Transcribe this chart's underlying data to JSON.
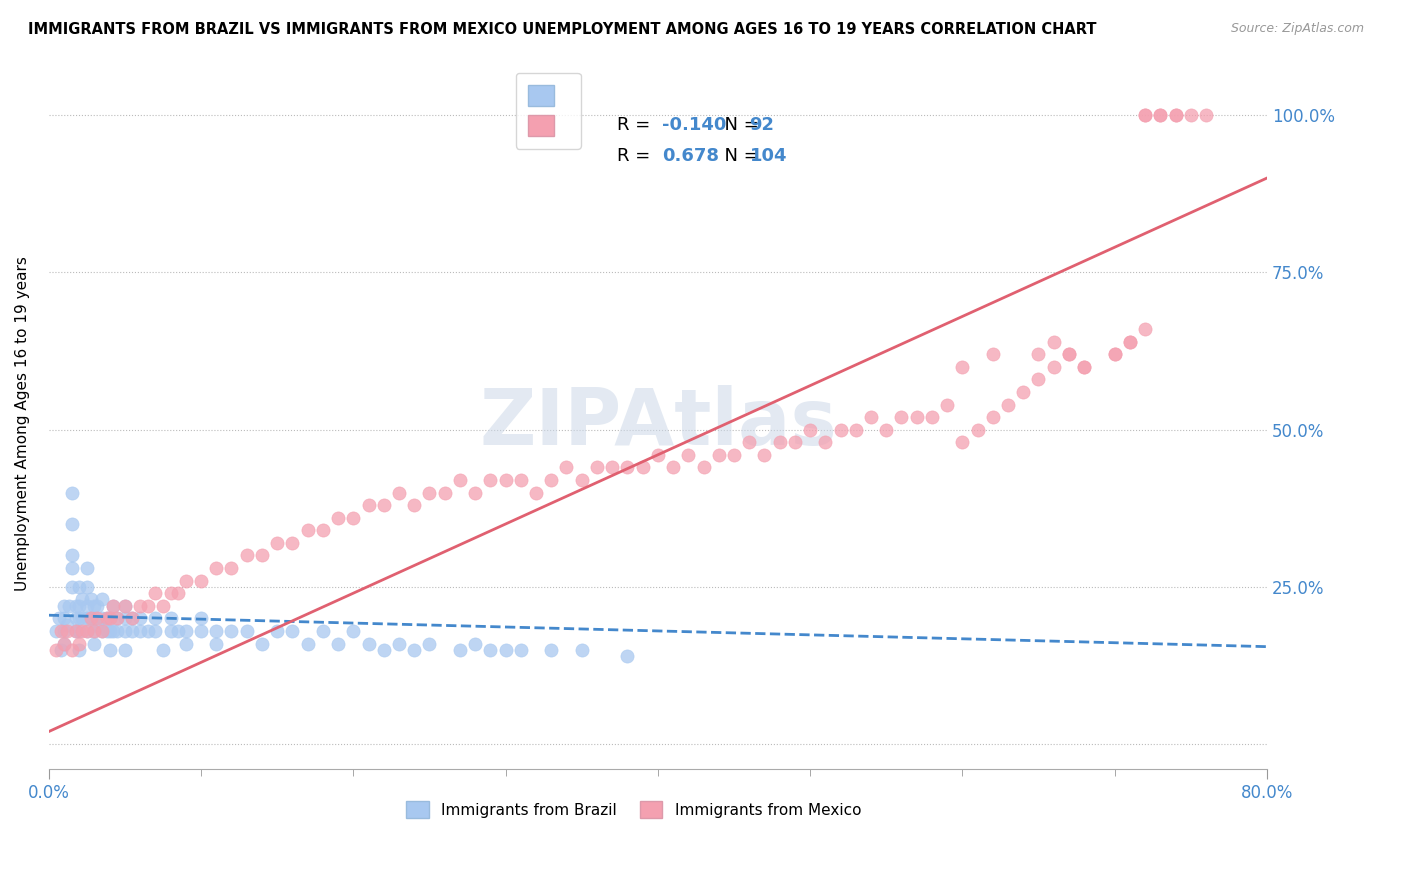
{
  "title": "IMMIGRANTS FROM BRAZIL VS IMMIGRANTS FROM MEXICO UNEMPLOYMENT AMONG AGES 16 TO 19 YEARS CORRELATION CHART",
  "source": "Source: ZipAtlas.com",
  "ylabel": "Unemployment Among Ages 16 to 19 years",
  "watermark": "ZIPAtlas",
  "xmin": 0.0,
  "xmax": 0.8,
  "ymin": -0.04,
  "ymax": 1.06,
  "brazil_R": -0.14,
  "brazil_N": 92,
  "mexico_R": 0.678,
  "mexico_N": 104,
  "brazil_color": "#a8c8f0",
  "mexico_color": "#f4a0b0",
  "brazil_line_color": "#4488cc",
  "mexico_line_color": "#e06070",
  "legend_brazil_label": "Immigrants from Brazil",
  "legend_mexico_label": "Immigrants from Mexico",
  "brazil_trend_x0": 0.0,
  "brazil_trend_y0": 0.205,
  "brazil_trend_x1": 0.8,
  "brazil_trend_y1": 0.155,
  "mexico_trend_x0": 0.0,
  "mexico_trend_y0": 0.02,
  "mexico_trend_x1": 0.8,
  "mexico_trend_y1": 0.9,
  "brazil_scatter_x": [
    0.005,
    0.007,
    0.008,
    0.01,
    0.01,
    0.01,
    0.01,
    0.012,
    0.013,
    0.015,
    0.015,
    0.015,
    0.015,
    0.015,
    0.018,
    0.018,
    0.018,
    0.02,
    0.02,
    0.02,
    0.02,
    0.02,
    0.022,
    0.022,
    0.025,
    0.025,
    0.025,
    0.025,
    0.025,
    0.028,
    0.028,
    0.03,
    0.03,
    0.03,
    0.03,
    0.032,
    0.032,
    0.035,
    0.035,
    0.035,
    0.038,
    0.038,
    0.04,
    0.04,
    0.04,
    0.042,
    0.042,
    0.045,
    0.045,
    0.05,
    0.05,
    0.05,
    0.05,
    0.055,
    0.055,
    0.06,
    0.06,
    0.065,
    0.07,
    0.07,
    0.075,
    0.08,
    0.08,
    0.085,
    0.09,
    0.09,
    0.1,
    0.1,
    0.11,
    0.11,
    0.12,
    0.13,
    0.14,
    0.15,
    0.16,
    0.17,
    0.18,
    0.19,
    0.2,
    0.21,
    0.22,
    0.23,
    0.24,
    0.25,
    0.27,
    0.28,
    0.29,
    0.3,
    0.31,
    0.33,
    0.35,
    0.38
  ],
  "brazil_scatter_y": [
    0.18,
    0.2,
    0.15,
    0.2,
    0.18,
    0.22,
    0.16,
    0.19,
    0.22,
    0.25,
    0.28,
    0.3,
    0.35,
    0.4,
    0.2,
    0.22,
    0.18,
    0.15,
    0.18,
    0.2,
    0.22,
    0.25,
    0.2,
    0.23,
    0.18,
    0.2,
    0.22,
    0.25,
    0.28,
    0.2,
    0.23,
    0.18,
    0.2,
    0.22,
    0.16,
    0.19,
    0.22,
    0.2,
    0.18,
    0.23,
    0.18,
    0.2,
    0.15,
    0.18,
    0.2,
    0.18,
    0.22,
    0.18,
    0.2,
    0.15,
    0.18,
    0.2,
    0.22,
    0.18,
    0.2,
    0.18,
    0.2,
    0.18,
    0.18,
    0.2,
    0.15,
    0.18,
    0.2,
    0.18,
    0.18,
    0.16,
    0.18,
    0.2,
    0.18,
    0.16,
    0.18,
    0.18,
    0.16,
    0.18,
    0.18,
    0.16,
    0.18,
    0.16,
    0.18,
    0.16,
    0.15,
    0.16,
    0.15,
    0.16,
    0.15,
    0.16,
    0.15,
    0.15,
    0.15,
    0.15,
    0.15,
    0.14
  ],
  "mexico_scatter_x": [
    0.005,
    0.008,
    0.01,
    0.012,
    0.015,
    0.018,
    0.02,
    0.022,
    0.025,
    0.028,
    0.03,
    0.032,
    0.035,
    0.038,
    0.04,
    0.042,
    0.045,
    0.05,
    0.055,
    0.06,
    0.065,
    0.07,
    0.075,
    0.08,
    0.085,
    0.09,
    0.1,
    0.11,
    0.12,
    0.13,
    0.14,
    0.15,
    0.16,
    0.17,
    0.18,
    0.19,
    0.2,
    0.21,
    0.22,
    0.23,
    0.24,
    0.25,
    0.26,
    0.27,
    0.28,
    0.29,
    0.3,
    0.31,
    0.32,
    0.33,
    0.34,
    0.35,
    0.36,
    0.37,
    0.38,
    0.39,
    0.4,
    0.41,
    0.42,
    0.43,
    0.44,
    0.45,
    0.46,
    0.47,
    0.48,
    0.49,
    0.5,
    0.51,
    0.52,
    0.53,
    0.54,
    0.55,
    0.56,
    0.57,
    0.58,
    0.59,
    0.6,
    0.62,
    0.65,
    0.66,
    0.67,
    0.68,
    0.7,
    0.71,
    0.72,
    0.72,
    0.73,
    0.73,
    0.74,
    0.74,
    0.75,
    0.76,
    0.6,
    0.61,
    0.62,
    0.63,
    0.64,
    0.65,
    0.66,
    0.67,
    0.68,
    0.7,
    0.71,
    0.72
  ],
  "mexico_scatter_y": [
    0.15,
    0.18,
    0.16,
    0.18,
    0.15,
    0.18,
    0.16,
    0.18,
    0.18,
    0.2,
    0.18,
    0.2,
    0.18,
    0.2,
    0.2,
    0.22,
    0.2,
    0.22,
    0.2,
    0.22,
    0.22,
    0.24,
    0.22,
    0.24,
    0.24,
    0.26,
    0.26,
    0.28,
    0.28,
    0.3,
    0.3,
    0.32,
    0.32,
    0.34,
    0.34,
    0.36,
    0.36,
    0.38,
    0.38,
    0.4,
    0.38,
    0.4,
    0.4,
    0.42,
    0.4,
    0.42,
    0.42,
    0.42,
    0.4,
    0.42,
    0.44,
    0.42,
    0.44,
    0.44,
    0.44,
    0.44,
    0.46,
    0.44,
    0.46,
    0.44,
    0.46,
    0.46,
    0.48,
    0.46,
    0.48,
    0.48,
    0.5,
    0.48,
    0.5,
    0.5,
    0.52,
    0.5,
    0.52,
    0.52,
    0.52,
    0.54,
    0.6,
    0.62,
    0.62,
    0.64,
    0.62,
    0.6,
    0.62,
    0.64,
    1.0,
    1.0,
    1.0,
    1.0,
    1.0,
    1.0,
    1.0,
    1.0,
    0.48,
    0.5,
    0.52,
    0.54,
    0.56,
    0.58,
    0.6,
    0.62,
    0.6,
    0.62,
    0.64,
    0.66
  ]
}
